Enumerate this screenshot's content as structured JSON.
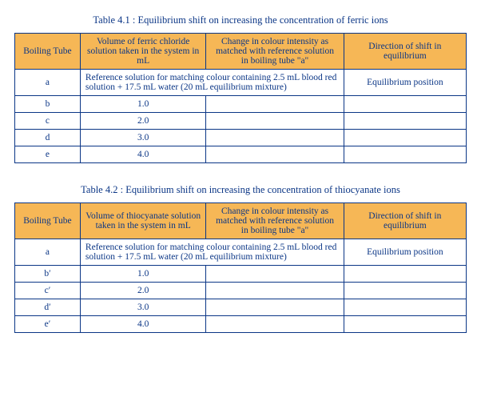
{
  "tables": [
    {
      "caption": "Table 4.1 : Equilibrium shift on increasing the concentration of ferric ions",
      "headers": {
        "col0": "Boiling Tube",
        "col1": "Volume of ferric chloride solution taken in the system in mL",
        "col2": "Change in colour intensity as matched with reference solution in boiling tube \"a\"",
        "col3": "Direction of shift in equilibrium"
      },
      "reference_row": {
        "label": "a",
        "text": "Reference solution for matching colour containing 2.5 mL blood red solution + 17.5 mL water (20 mL equilibrium mixture)",
        "shift": "Equilibrium position"
      },
      "rows": [
        {
          "label": "b",
          "volume": "1.0",
          "change": "",
          "shift": ""
        },
        {
          "label": "c",
          "volume": "2.0",
          "change": "",
          "shift": ""
        },
        {
          "label": "d",
          "volume": "3.0",
          "change": "",
          "shift": ""
        },
        {
          "label": "e",
          "volume": "4.0",
          "change": "",
          "shift": ""
        }
      ]
    },
    {
      "caption": "Table 4.2 : Equilibrium shift on increasing the concentration of thiocyanate ions",
      "headers": {
        "col0": "Boiling Tube",
        "col1": "Volume of thiocyanate solution taken in the system in mL",
        "col2": "Change in colour intensity as matched with reference solution in boiling tube \"a\"",
        "col3": "Direction of shift in equilibrium"
      },
      "reference_row": {
        "label": "a",
        "text": "Reference solution for matching colour containing 2.5 mL blood red solution + 17.5 mL water (20 mL equilibrium mixture)",
        "shift": "Equilibrium position"
      },
      "rows": [
        {
          "label": "b′",
          "volume": "1.0",
          "change": "",
          "shift": ""
        },
        {
          "label": "c′",
          "volume": "2.0",
          "change": "",
          "shift": ""
        },
        {
          "label": "d′",
          "volume": "3.0",
          "change": "",
          "shift": ""
        },
        {
          "label": "e′",
          "volume": "4.0",
          "change": "",
          "shift": ""
        }
      ]
    }
  ],
  "style": {
    "header_bg": "#f6b756",
    "border_color": "#0b3686",
    "text_color": "#0b3686",
    "body_bg": "#ffffff",
    "font_family": "Georgia, 'Times New Roman', serif",
    "caption_fontsize_pt": 10,
    "cell_fontsize_pt": 9
  }
}
